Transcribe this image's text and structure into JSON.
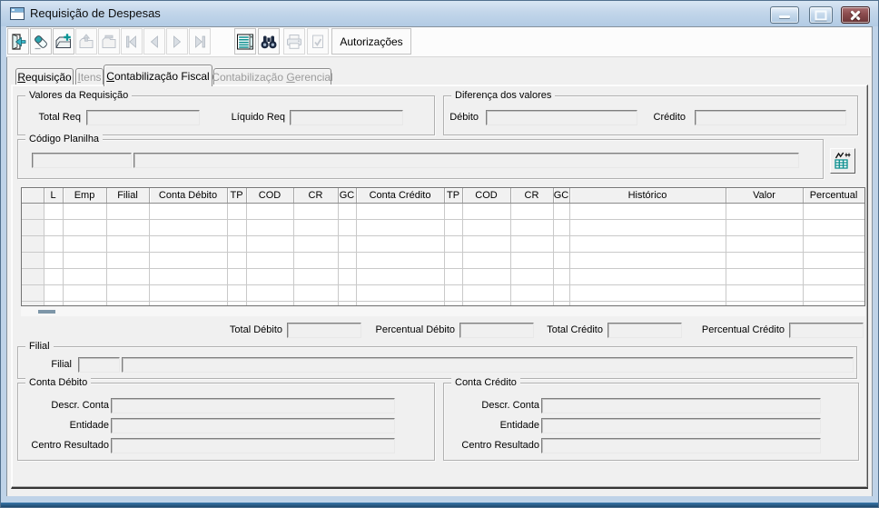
{
  "window": {
    "title": "Requisição de Despesas"
  },
  "titlebar": {
    "buttons": [
      "minimize",
      "maximize",
      "close"
    ]
  },
  "toolbar": {
    "icon_buttons": [
      "exit-door",
      "eraser",
      "insert-record",
      "post-record",
      "delete-record",
      "first-record",
      "prior-record",
      "next-record",
      "last-record",
      "browse-table",
      "search-binoculars",
      "print",
      "confirm"
    ],
    "autorizacoes_label": "Autorizações"
  },
  "tabs": [
    {
      "pre": "",
      "key": "R",
      "post": "equisição",
      "state": "enabled"
    },
    {
      "pre": "",
      "key": "I",
      "post": "tens",
      "state": "disabled"
    },
    {
      "pre": "",
      "key": "C",
      "post": "ontabilização Fiscal",
      "state": "active"
    },
    {
      "pre": "Contabilização ",
      "key": "G",
      "post": "erencial",
      "state": "disabled"
    }
  ],
  "valores_requisicao": {
    "title": "Valores da Requisição",
    "total_label": "Total Req",
    "total_value": "",
    "liquido_label": "Líquido Req",
    "liquido_value": ""
  },
  "diferenca_valores": {
    "title": "Diferença dos valores",
    "debito_label": "Débito",
    "debito_value": "",
    "credito_label": "Crédito",
    "credito_value": ""
  },
  "codigo_planilha": {
    "title": "Código Planilha",
    "code_value": "",
    "desc_value": ""
  },
  "grid": {
    "columns": [
      "",
      "L",
      "Emp",
      "Filial",
      "Conta Débito",
      "TP",
      "COD",
      "CR",
      "GC",
      "Conta Crédito",
      "TP",
      "COD",
      "CR",
      "GC",
      "Histórico",
      "Valor",
      "Percentual"
    ],
    "row_count": 7,
    "rows": []
  },
  "totals": {
    "total_debito_label": "Total Débito",
    "total_debito_value": "",
    "percentual_debito_label": "Percentual Débito",
    "percentual_debito_value": "",
    "total_credito_label": "Total Crédito",
    "total_credito_value": "",
    "percentual_credito_label": "Percentual Crédito",
    "percentual_credito_value": ""
  },
  "filial": {
    "title": "Filial",
    "label": "Filial",
    "code_value": "",
    "desc_value": ""
  },
  "conta_debito": {
    "title": "Conta Débito",
    "descr_label": "Descr. Conta",
    "descr_value": "",
    "entidade_label": "Entidade",
    "entidade_value": "",
    "centro_label": "Centro Resultado",
    "centro_value": ""
  },
  "conta_credito": {
    "title": "Conta Crédito",
    "descr_label": "Descr. Conta",
    "descr_value": "",
    "entidade_label": "Entidade",
    "entidade_value": "",
    "centro_label": "Centro Resultado",
    "centro_value": ""
  },
  "colors": {
    "teal": "#0c8e8e",
    "navy_icon": "#1b2840",
    "close_red": "#6b3537",
    "titlebar_blue": "#c3d6ea"
  }
}
